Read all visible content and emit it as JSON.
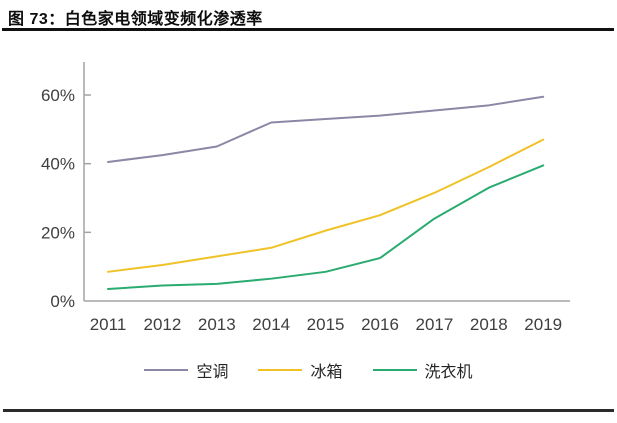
{
  "page": {
    "title": "图 73：白色家电领域变频化渗透率"
  },
  "chart_data": {
    "type": "line",
    "title": "白色家电领域变频化渗透率",
    "x": [
      "2011",
      "2012",
      "2013",
      "2014",
      "2015",
      "2016",
      "2017",
      "2018",
      "2019"
    ],
    "series": [
      {
        "name": "空调",
        "color": "#8C87A5",
        "values": [
          40.5,
          42.5,
          45,
          52,
          53,
          54,
          55.5,
          57,
          59.5
        ]
      },
      {
        "name": "冰箱",
        "color": "#EFC228",
        "values": [
          8.5,
          10.5,
          13,
          15.5,
          20.5,
          25,
          31.5,
          39,
          47
        ]
      },
      {
        "name": "洗衣机",
        "color": "#2AAB6F",
        "values": [
          3.5,
          4.5,
          5,
          6.5,
          8.5,
          12.5,
          24,
          33,
          39.5
        ]
      }
    ],
    "ylim": [
      0,
      65
    ],
    "yticks": [
      {
        "value": 0,
        "label": "0%"
      },
      {
        "value": 20,
        "label": "20%"
      },
      {
        "value": 40,
        "label": "40%"
      },
      {
        "value": 60,
        "label": "60%"
      }
    ],
    "xlabel": "",
    "ylabel": "",
    "grid": false,
    "legend_position": "bottom",
    "axis_color": "#A3A3A3",
    "tick_label_color": "#3F3F3F"
  }
}
